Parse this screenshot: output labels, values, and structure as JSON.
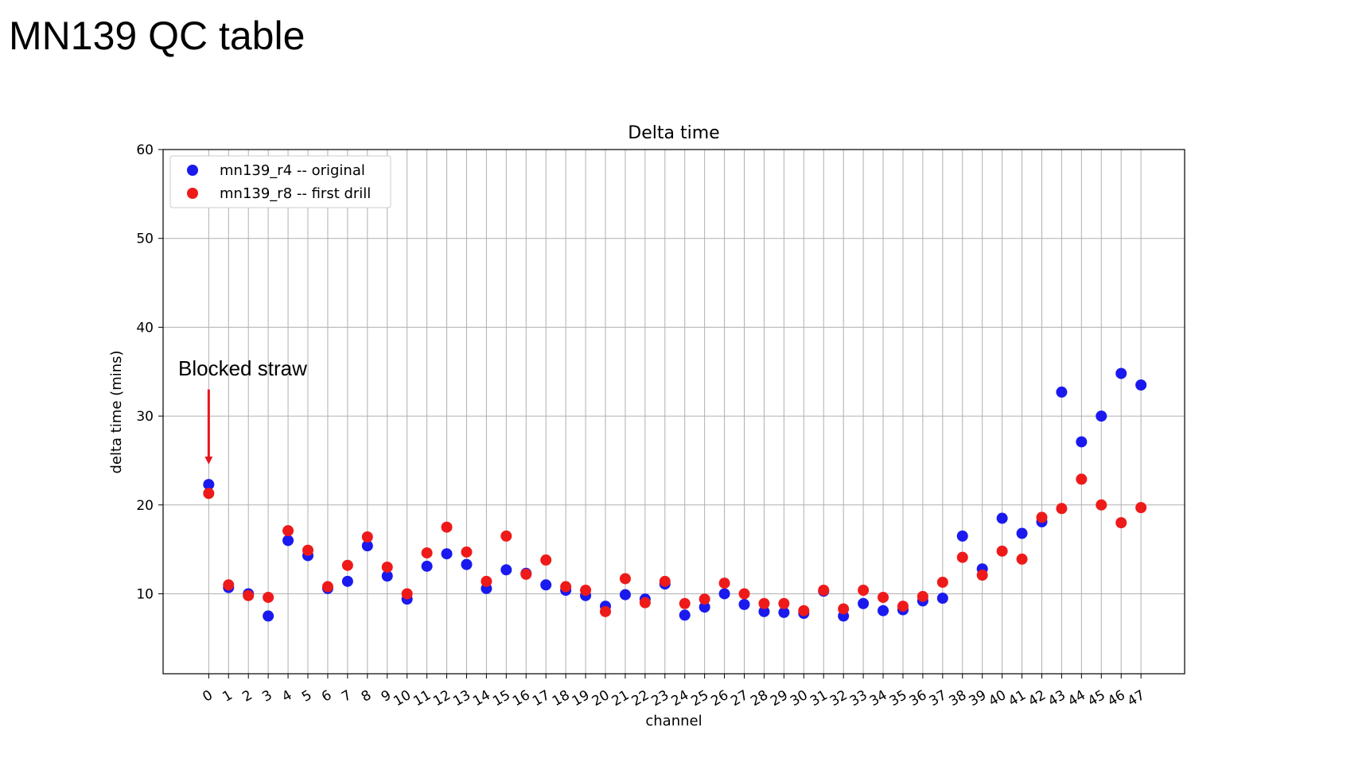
{
  "slide": {
    "title": "MN139 QC table"
  },
  "chart_data": {
    "type": "scatter",
    "title": "Delta time",
    "xlabel": "channel",
    "ylabel": "delta time (mins)",
    "ylim": [
      1,
      60
    ],
    "yticks": [
      10,
      20,
      30,
      40,
      50,
      60
    ],
    "x": [
      0,
      1,
      2,
      3,
      4,
      5,
      6,
      7,
      8,
      9,
      10,
      11,
      12,
      13,
      14,
      15,
      16,
      17,
      18,
      19,
      20,
      21,
      22,
      23,
      24,
      25,
      26,
      27,
      28,
      29,
      30,
      31,
      32,
      33,
      34,
      35,
      36,
      37,
      38,
      39,
      40,
      41,
      42,
      43,
      44,
      45,
      46,
      47
    ],
    "grid": true,
    "legend_position": "top-left",
    "series": [
      {
        "name": "mn139_r4 -- original",
        "color": "#1a1aee",
        "values": [
          22.3,
          10.7,
          10.0,
          7.5,
          16.0,
          14.3,
          10.6,
          11.4,
          15.4,
          12.0,
          9.4,
          13.1,
          14.5,
          13.3,
          10.6,
          12.7,
          12.3,
          11.0,
          10.4,
          9.8,
          8.6,
          9.9,
          9.4,
          11.1,
          7.6,
          8.5,
          10.0,
          8.8,
          8.0,
          7.9,
          7.8,
          10.3,
          7.5,
          8.9,
          8.1,
          8.2,
          9.2,
          9.5,
          16.5,
          12.8,
          18.5,
          16.8,
          18.1,
          32.7,
          27.1,
          30.0,
          34.8,
          33.5
        ]
      },
      {
        "name": "mn139_r8 -- first drill",
        "color": "#ee1a1a",
        "values": [
          21.3,
          11.0,
          9.8,
          9.6,
          17.1,
          14.9,
          10.8,
          13.2,
          16.4,
          13.0,
          10.0,
          14.6,
          17.5,
          14.7,
          11.4,
          16.5,
          12.2,
          13.8,
          10.8,
          10.4,
          8.0,
          11.7,
          9.0,
          11.4,
          8.9,
          9.4,
          11.2,
          10.0,
          8.9,
          8.9,
          8.1,
          10.4,
          8.3,
          10.4,
          9.6,
          8.6,
          9.7,
          11.3,
          14.1,
          12.1,
          14.8,
          13.9,
          18.6,
          19.6,
          22.9,
          20.0,
          18.0,
          19.7
        ]
      }
    ],
    "annotations": [
      {
        "text": "Blocked straw",
        "x": 0,
        "arrow_from_y": 33.0,
        "arrow_to_y": 25.0
      }
    ]
  }
}
